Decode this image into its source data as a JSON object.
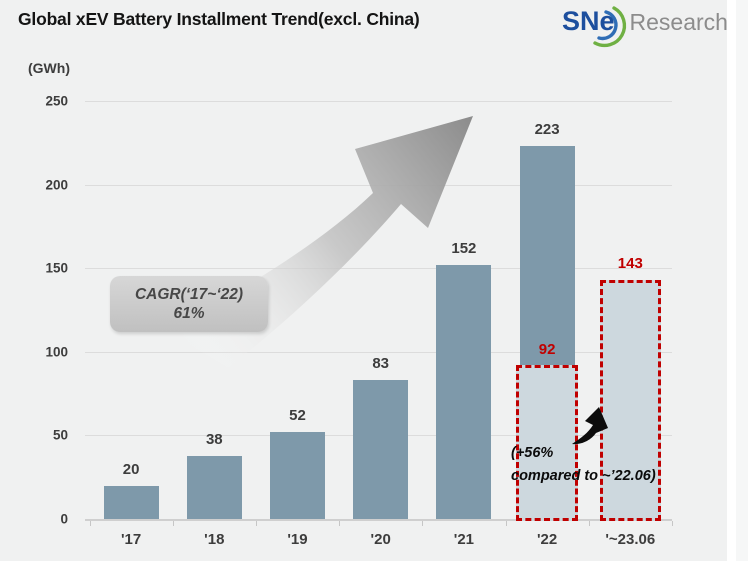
{
  "title": "Global xEV Battery Installment Trend(excl. China)",
  "logo": {
    "brand": "SNe",
    "name": "Research"
  },
  "colors": {
    "background": "#f0f1f1",
    "bar": "#7e99aa",
    "bar_light": "#cdd8de",
    "highlight_red": "#c00000",
    "grid": "#dcdcdc",
    "axis": "#cfcfcf",
    "text": "#3d3d3d",
    "logo_blue": "#1d4f9e",
    "logo_green": "#6fb043",
    "logo_gray": "#8c8c8c"
  },
  "chart_data": {
    "type": "bar",
    "title": "Global xEV Battery Installment Trend(excl. China)",
    "unit_label": "(GWh)",
    "xlabel": "",
    "ylabel": "GWh",
    "ylim": [
      0,
      250
    ],
    "y_ticks": [
      0,
      50,
      100,
      150,
      200,
      250
    ],
    "grid": true,
    "legend": "none",
    "categories": [
      "'17",
      "'18",
      "'19",
      "'20",
      "'21",
      "'22",
      "'~23.06"
    ],
    "values": [
      20,
      38,
      52,
      83,
      152,
      223,
      143
    ],
    "bars": [
      {
        "category": "'17",
        "value": 20,
        "style": "solid"
      },
      {
        "category": "'18",
        "value": 38,
        "style": "solid"
      },
      {
        "category": "'19",
        "value": 52,
        "style": "solid"
      },
      {
        "category": "'20",
        "value": 83,
        "style": "solid"
      },
      {
        "category": "'21",
        "value": 152,
        "style": "solid"
      },
      {
        "category": "'22",
        "value": 223,
        "style": "solid",
        "overlay": {
          "value": 92,
          "style": "dashed-light",
          "label_color": "#c00000"
        }
      },
      {
        "category": "'~23.06",
        "value": 143,
        "style": "dashed-light",
        "value_color": "#c00000"
      }
    ],
    "annotations": {
      "cagr_line1": "CAGR(‘17~‘22)",
      "cagr_line2": "61%",
      "growth_note_line1": "(+56%",
      "growth_note_line2": "compared to ~’22.06)"
    }
  }
}
